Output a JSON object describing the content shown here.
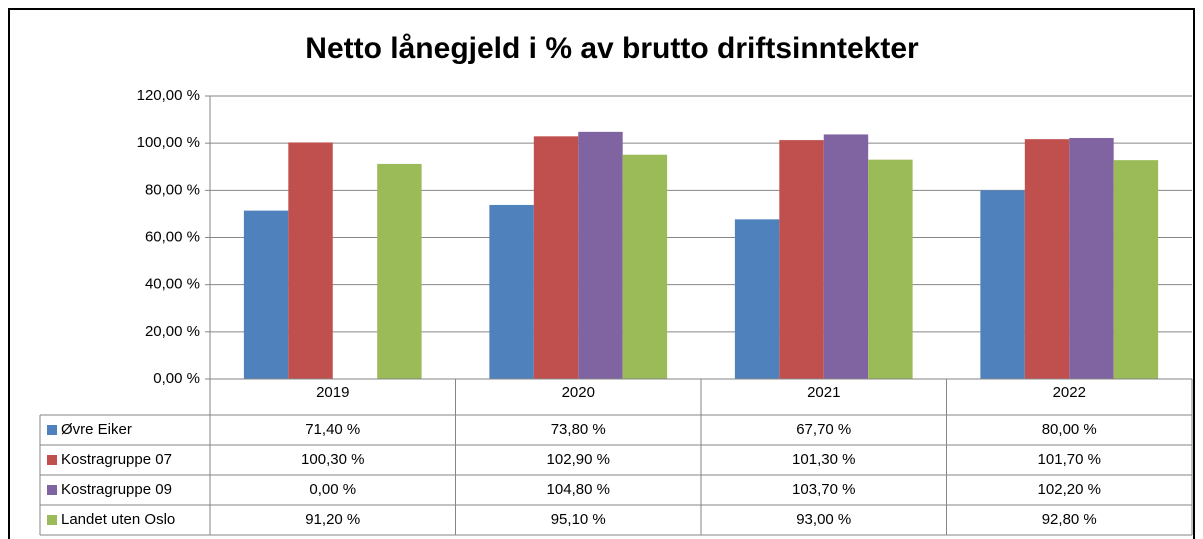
{
  "chart_data": {
    "type": "bar",
    "title": "Netto lånegjeld i % av brutto driftsinntekter",
    "categories": [
      "2019",
      "2020",
      "2021",
      "2022"
    ],
    "series": [
      {
        "name": "Øvre Eiker",
        "color": "#4f81bd",
        "values": [
          71.4,
          73.8,
          67.7,
          80.0
        ],
        "value_labels": [
          "71,40 %",
          "73,80 %",
          "67,70 %",
          "80,00 %"
        ]
      },
      {
        "name": "Kostragruppe 07",
        "color": "#c0504d",
        "values": [
          100.3,
          102.9,
          101.3,
          101.7
        ],
        "value_labels": [
          "100,30 %",
          "102,90 %",
          "101,30 %",
          "101,70 %"
        ]
      },
      {
        "name": "Kostragruppe 09",
        "color": "#8064a2",
        "values": [
          0.0,
          104.8,
          103.7,
          102.2
        ],
        "value_labels": [
          "0,00 %",
          "104,80 %",
          "103,70 %",
          "102,20 %"
        ]
      },
      {
        "name": "Landet uten Oslo",
        "color": "#9bbb59",
        "values": [
          91.2,
          95.1,
          93.0,
          92.8
        ],
        "value_labels": [
          "91,20 %",
          "95,10 %",
          "93,00 %",
          "92,80 %"
        ]
      }
    ],
    "ylim": [
      0,
      120
    ],
    "yticks": [
      {
        "value": 0,
        "label": "0,00 %"
      },
      {
        "value": 20,
        "label": "20,00 %"
      },
      {
        "value": 40,
        "label": "40,00 %"
      },
      {
        "value": 60,
        "label": "60,00 %"
      },
      {
        "value": 80,
        "label": "80,00 %"
      },
      {
        "value": 100,
        "label": "100,00 %"
      },
      {
        "value": 120,
        "label": "120,00 %"
      }
    ],
    "grid": true
  }
}
